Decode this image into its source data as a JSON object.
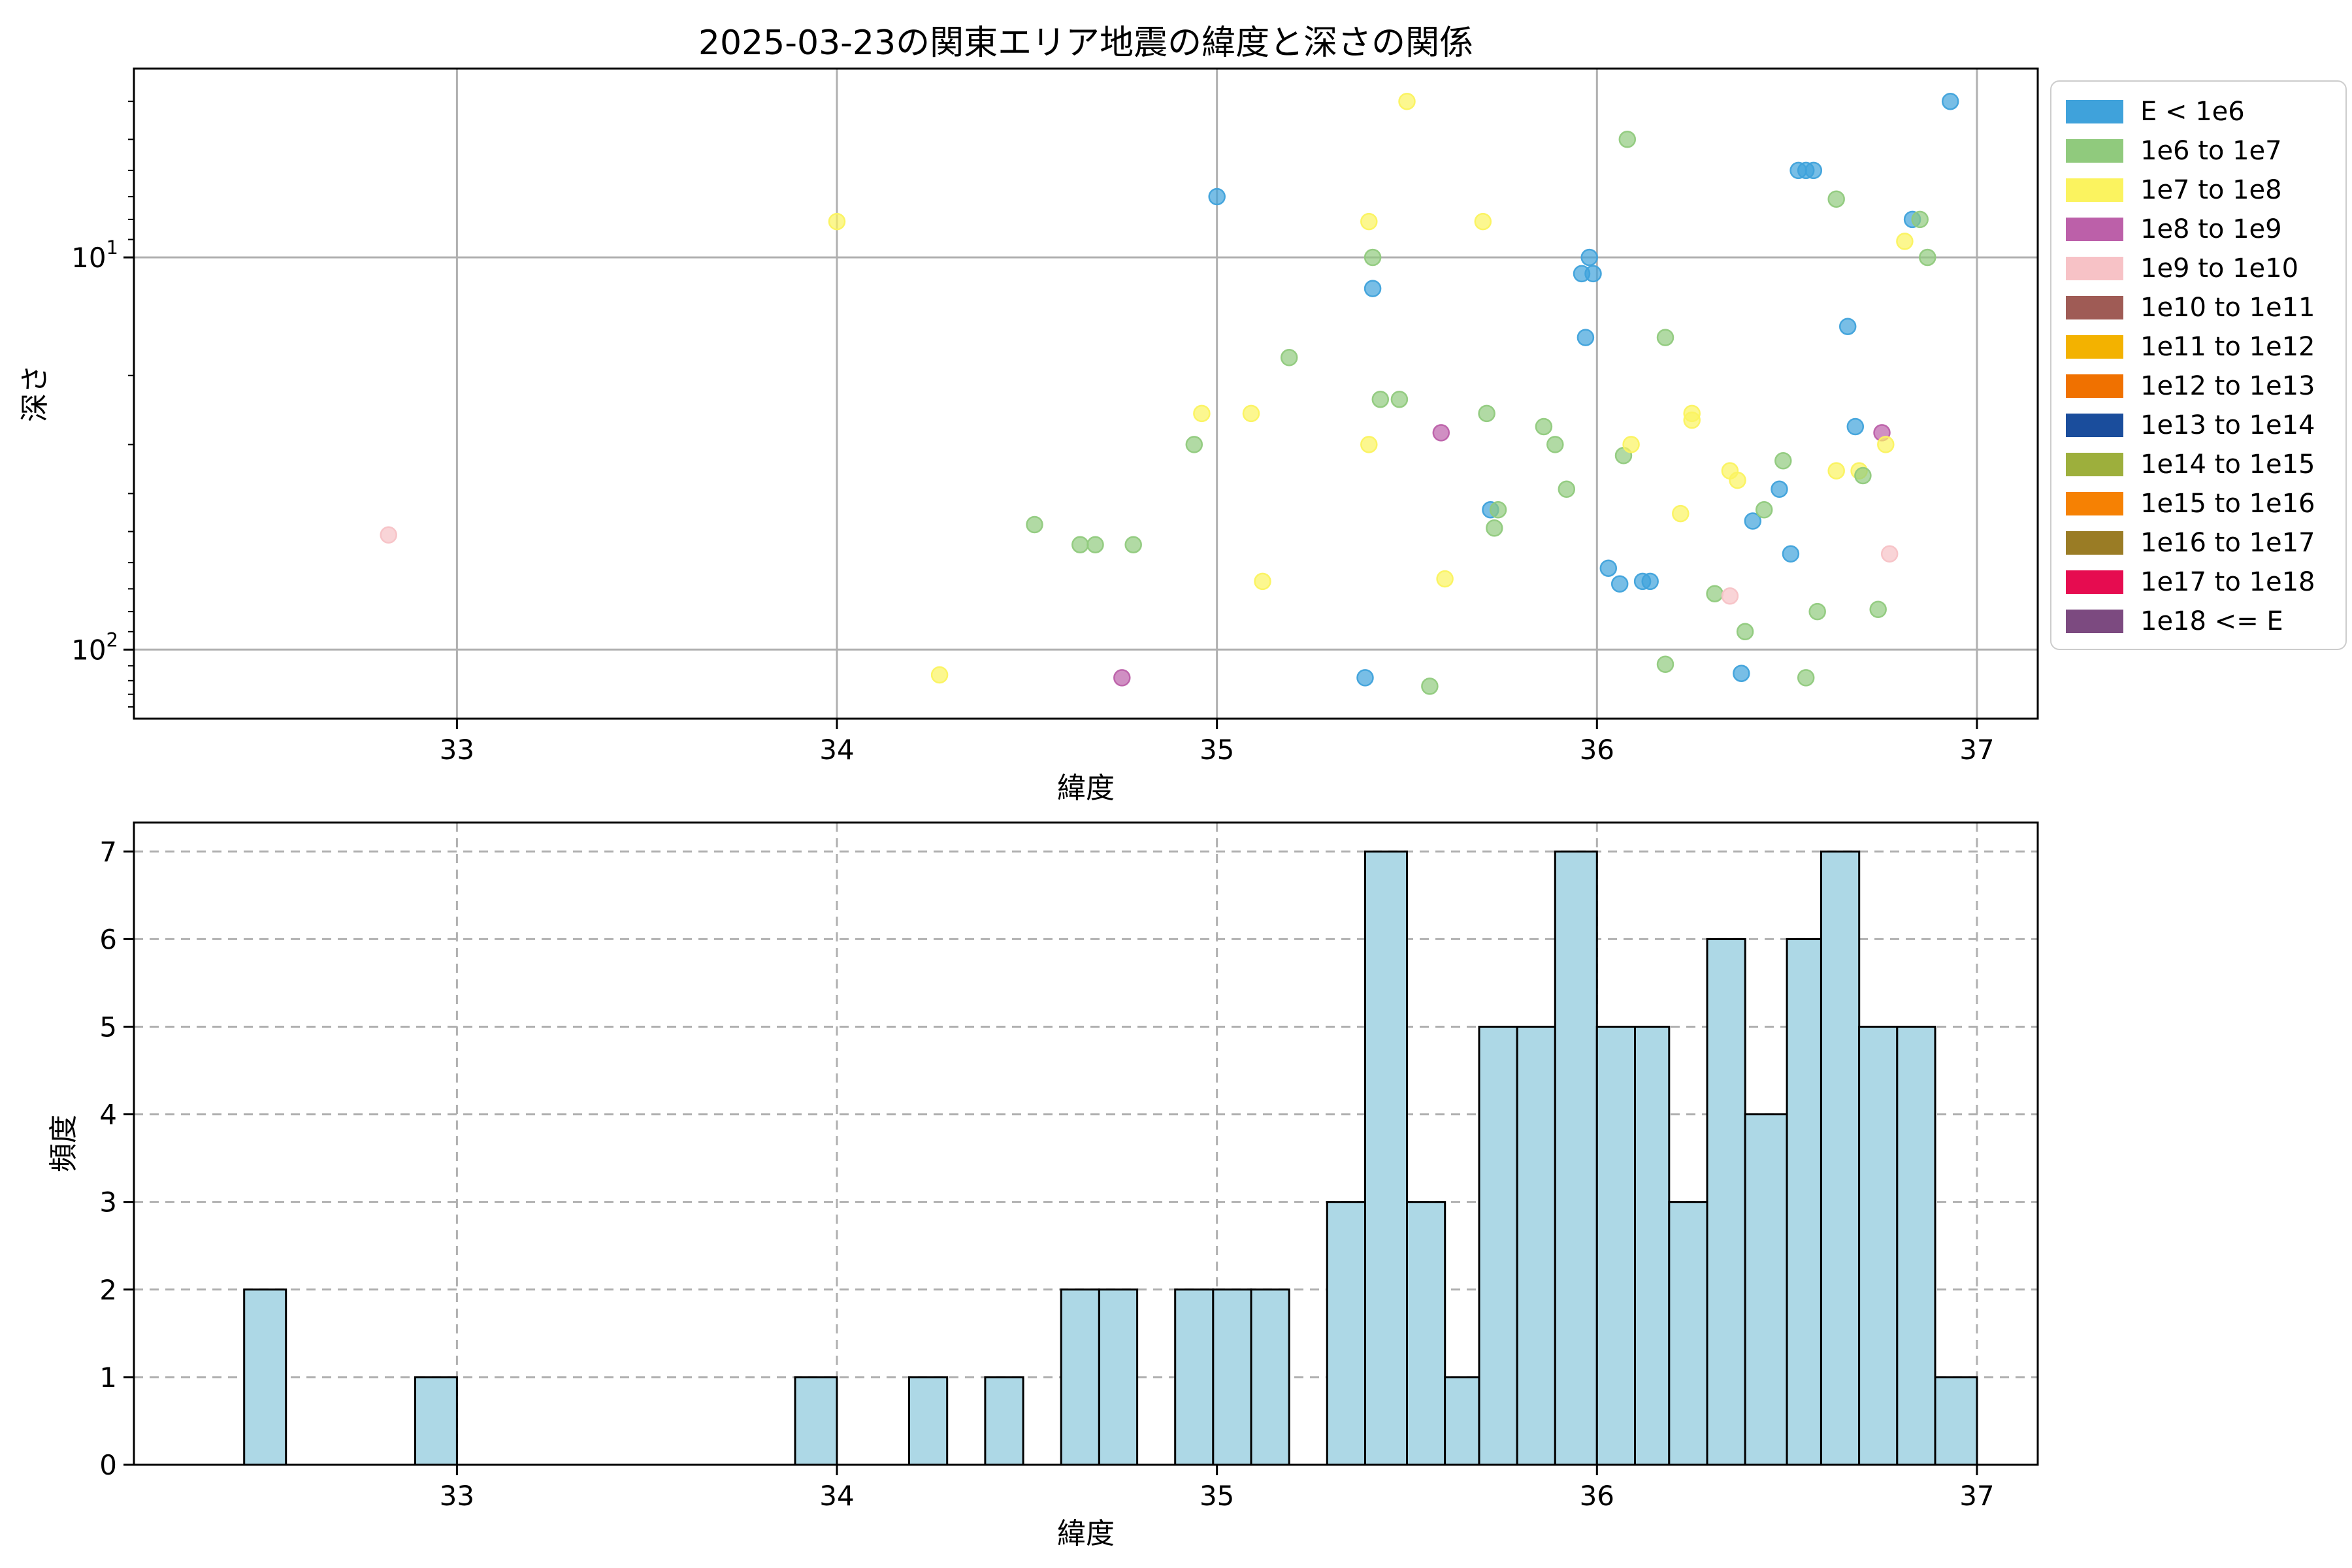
{
  "title": "2025-03-23の関東エリア地震の緯度と深さの関係",
  "colors": {
    "background": "#ffffff",
    "grid": "#b0b0b0",
    "spine": "#000000",
    "bar_fill": "#add8e6",
    "bar_edge": "#000000",
    "legend_border": "#cccccc"
  },
  "legend": {
    "entries": [
      {
        "label": "E < 1e6",
        "color": "#3fa2db"
      },
      {
        "label": "1e6 to 1e7",
        "color": "#90ca7d"
      },
      {
        "label": "1e7 to 1e8",
        "color": "#fbf35f"
      },
      {
        "label": "1e8 to 1e9",
        "color": "#bc60a9"
      },
      {
        "label": "1e9 to 1e10",
        "color": "#f7c2c6"
      },
      {
        "label": "1e10 to 1e11",
        "color": "#9f5b55"
      },
      {
        "label": "1e11 to 1e12",
        "color": "#f3b200"
      },
      {
        "label": "1e12 to 1e13",
        "color": "#f07100"
      },
      {
        "label": "1e13 to 1e14",
        "color": "#1a4d9c"
      },
      {
        "label": "1e14 to 1e15",
        "color": "#9daf3c"
      },
      {
        "label": "1e15 to 1e16",
        "color": "#f68103"
      },
      {
        "label": "1e16 to 1e17",
        "color": "#9a7c25"
      },
      {
        "label": "1e17 to 1e18",
        "color": "#e60c50"
      },
      {
        "label": "1e18 <= E",
        "color": "#7c4a80"
      }
    ]
  },
  "chart_data": [
    {
      "type": "scatter",
      "title": "2025-03-23の関東エリア地震の緯度と深さの関係",
      "xlabel": "緯度",
      "ylabel": "深さ",
      "xlim": [
        32.15,
        37.16
      ],
      "ylim_depth": [
        3.3,
        150
      ],
      "y_scale": "log-inverted (depth increases downward)",
      "xticks": [
        33,
        34,
        35,
        36,
        37
      ],
      "yticks_major": [
        {
          "value": 10,
          "base": "10",
          "exp": "1"
        },
        {
          "value": 100,
          "base": "10",
          "exp": "2"
        }
      ],
      "yticks_minor": [
        4,
        5,
        6,
        7,
        8,
        9,
        20,
        30,
        40,
        50,
        60,
        70,
        80,
        90,
        110,
        120,
        130,
        140
      ],
      "grid": "solid major gridlines",
      "legend_position": "outside upper right",
      "points_format": [
        "latitude",
        "depth_km",
        "energy_bin_index"
      ],
      "points": [
        [
          32.82,
          51,
          4
        ],
        [
          34.0,
          8.1,
          2
        ],
        [
          34.27,
          116,
          2
        ],
        [
          34.52,
          48,
          1
        ],
        [
          34.64,
          54,
          1
        ],
        [
          34.68,
          54,
          1
        ],
        [
          34.75,
          118,
          3
        ],
        [
          34.78,
          54,
          1
        ],
        [
          34.94,
          30,
          1
        ],
        [
          34.96,
          25,
          2
        ],
        [
          35.0,
          7.0,
          0
        ],
        [
          35.09,
          25,
          2
        ],
        [
          35.12,
          67,
          2
        ],
        [
          35.19,
          18,
          1
        ],
        [
          35.39,
          118,
          0
        ],
        [
          35.4,
          8.1,
          2
        ],
        [
          35.4,
          30,
          2
        ],
        [
          35.41,
          10,
          1
        ],
        [
          35.41,
          12,
          0
        ],
        [
          35.43,
          23,
          1
        ],
        [
          35.48,
          23,
          1
        ],
        [
          35.5,
          4.0,
          2
        ],
        [
          35.56,
          124,
          1
        ],
        [
          35.59,
          28,
          3
        ],
        [
          35.6,
          66,
          2
        ],
        [
          35.7,
          8.1,
          2
        ],
        [
          35.71,
          25,
          1
        ],
        [
          35.72,
          44,
          0
        ],
        [
          35.73,
          49,
          1
        ],
        [
          35.74,
          44,
          1
        ],
        [
          35.86,
          27,
          1
        ],
        [
          35.89,
          30,
          1
        ],
        [
          35.92,
          39,
          1
        ],
        [
          35.96,
          11,
          0
        ],
        [
          35.97,
          16,
          0
        ],
        [
          35.98,
          10,
          0
        ],
        [
          35.99,
          11,
          0
        ],
        [
          36.03,
          62,
          0
        ],
        [
          36.06,
          68,
          0
        ],
        [
          36.07,
          32,
          1
        ],
        [
          36.08,
          5.0,
          1
        ],
        [
          36.09,
          30,
          2
        ],
        [
          36.12,
          67,
          0
        ],
        [
          36.14,
          67,
          0
        ],
        [
          36.18,
          16,
          1
        ],
        [
          36.18,
          109,
          1
        ],
        [
          36.22,
          45,
          2
        ],
        [
          36.25,
          25,
          2
        ],
        [
          36.25,
          26,
          2
        ],
        [
          36.31,
          72,
          1
        ],
        [
          36.35,
          35,
          2
        ],
        [
          36.35,
          73,
          4
        ],
        [
          36.37,
          37,
          2
        ],
        [
          36.38,
          115,
          0
        ],
        [
          36.39,
          90,
          1
        ],
        [
          36.41,
          47,
          0
        ],
        [
          36.44,
          44,
          1
        ],
        [
          36.48,
          39,
          0
        ],
        [
          36.49,
          33,
          1
        ],
        [
          36.51,
          57,
          0
        ],
        [
          36.53,
          6.0,
          0
        ],
        [
          36.55,
          6.0,
          0
        ],
        [
          36.55,
          118,
          1
        ],
        [
          36.57,
          6.0,
          0
        ],
        [
          36.58,
          80,
          1
        ],
        [
          36.63,
          7.1,
          1
        ],
        [
          36.63,
          35,
          2
        ],
        [
          36.66,
          15,
          0
        ],
        [
          36.68,
          27,
          0
        ],
        [
          36.69,
          35,
          2
        ],
        [
          36.7,
          36,
          1
        ],
        [
          36.74,
          79,
          1
        ],
        [
          36.75,
          28,
          3
        ],
        [
          36.76,
          30,
          2
        ],
        [
          36.77,
          57,
          4
        ],
        [
          36.81,
          9.1,
          2
        ],
        [
          36.83,
          8.0,
          0
        ],
        [
          36.85,
          8.0,
          1
        ],
        [
          36.87,
          10,
          1
        ],
        [
          36.93,
          4.0,
          0
        ]
      ]
    },
    {
      "type": "bar",
      "subtype": "histogram",
      "xlabel": "緯度",
      "ylabel": "頻度",
      "xlim": [
        32.15,
        37.16
      ],
      "ylim": [
        0,
        7.33
      ],
      "xticks": [
        33,
        34,
        35,
        36,
        37
      ],
      "yticks": [
        0,
        1,
        2,
        3,
        4,
        5,
        6,
        7
      ],
      "grid": "dashed gridlines both axes",
      "bars_format": [
        "lat_left_edge",
        "lat_right_edge",
        "count"
      ],
      "bars": [
        [
          32.44,
          32.55,
          2
        ],
        [
          32.89,
          33.0,
          1
        ],
        [
          33.89,
          34.0,
          1
        ],
        [
          34.19,
          34.29,
          1
        ],
        [
          34.39,
          34.49,
          1
        ],
        [
          34.59,
          34.69,
          2
        ],
        [
          34.69,
          34.79,
          2
        ],
        [
          34.89,
          34.99,
          2
        ],
        [
          34.99,
          35.09,
          2
        ],
        [
          35.09,
          35.19,
          2
        ],
        [
          35.29,
          35.39,
          3
        ],
        [
          35.39,
          35.5,
          7
        ],
        [
          35.5,
          35.6,
          3
        ],
        [
          35.6,
          35.69,
          1
        ],
        [
          35.69,
          35.79,
          5
        ],
        [
          35.79,
          35.89,
          5
        ],
        [
          35.89,
          36.0,
          7
        ],
        [
          36.0,
          36.1,
          5
        ],
        [
          36.1,
          36.19,
          5
        ],
        [
          36.19,
          36.29,
          3
        ],
        [
          36.29,
          36.39,
          6
        ],
        [
          36.39,
          36.5,
          4
        ],
        [
          36.5,
          36.59,
          6
        ],
        [
          36.59,
          36.69,
          7
        ],
        [
          36.69,
          36.79,
          5
        ],
        [
          36.79,
          36.89,
          5
        ],
        [
          36.89,
          37.0,
          1
        ]
      ]
    }
  ]
}
